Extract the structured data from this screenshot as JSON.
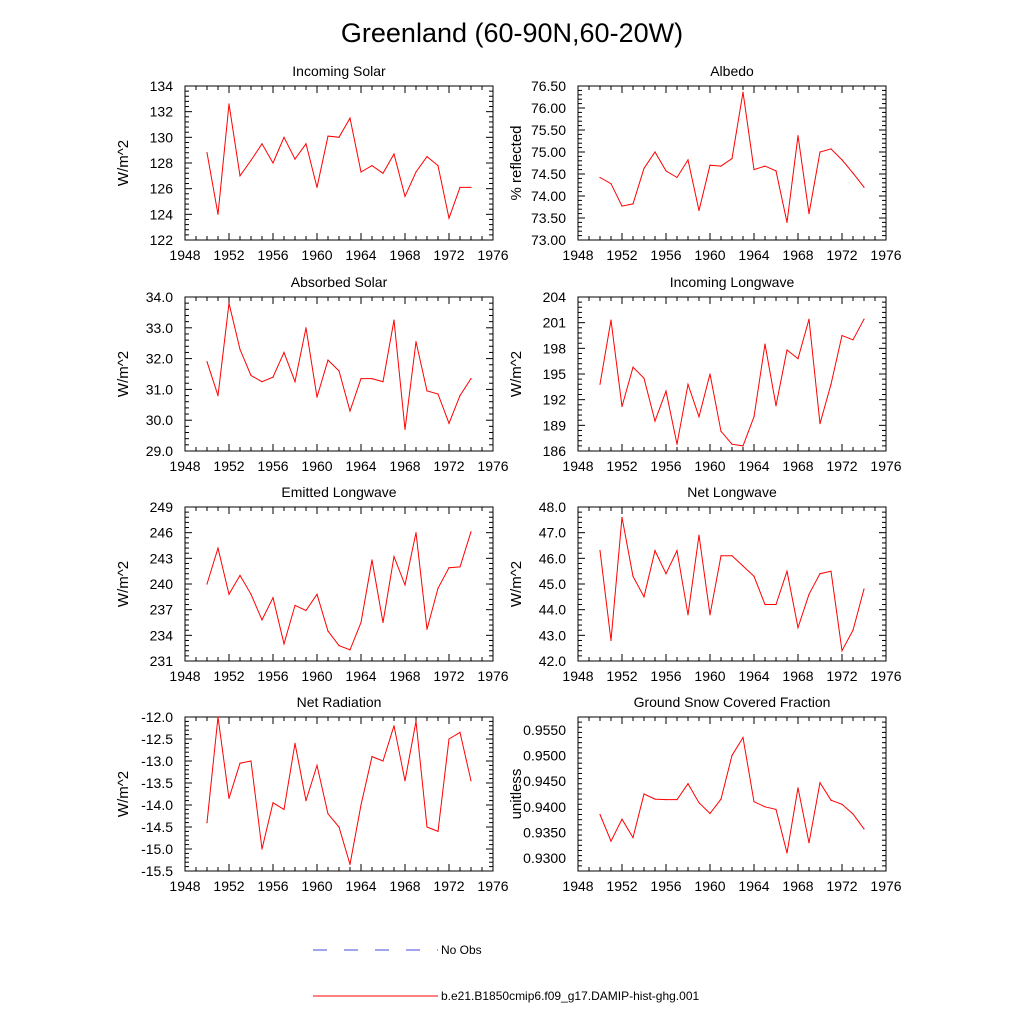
{
  "figure_title": "Greenland (60-90N,60-20W)",
  "colors": {
    "model_line": "#ff0000",
    "obs_line": "#4a4adc",
    "axis": "#000000"
  },
  "legend": {
    "obs_label": "No Obs",
    "model_label": "b.e21.B1850cmip6.f09_g17.DAMIP-hist-ghg.001"
  },
  "chart_data": [
    {
      "type": "line",
      "title": "Incoming Solar",
      "ylabel": "W/m^2",
      "xlim": [
        1948,
        1976
      ],
      "ylim": [
        122,
        134
      ],
      "xticks": [
        "1948",
        "1952",
        "1956",
        "1960",
        "1964",
        "1968",
        "1972",
        "1976"
      ],
      "yticks": [
        "122",
        "124",
        "126",
        "128",
        "130",
        "132",
        "134"
      ],
      "x": [
        1950,
        1951,
        1952,
        1953,
        1954,
        1955,
        1956,
        1957,
        1958,
        1959,
        1960,
        1961,
        1962,
        1963,
        1964,
        1965,
        1966,
        1967,
        1968,
        1969,
        1970,
        1971,
        1972,
        1973,
        1974
      ],
      "series": [
        {
          "values": [
            128.8,
            124.0,
            132.6,
            127.0,
            128.2,
            129.5,
            128.0,
            130.0,
            128.3,
            129.5,
            126.1,
            130.1,
            130.0,
            131.5,
            127.3,
            127.8,
            127.2,
            128.7,
            125.4,
            127.3,
            128.5,
            127.8,
            123.7,
            126.1,
            126.1
          ]
        }
      ]
    },
    {
      "type": "line",
      "title": "Albedo",
      "ylabel": "% reflected",
      "xlim": [
        1948,
        1976
      ],
      "ylim": [
        73.0,
        76.5
      ],
      "xticks": [
        "1948",
        "1952",
        "1956",
        "1960",
        "1964",
        "1968",
        "1972",
        "1976"
      ],
      "yticks": [
        "73.00",
        "73.50",
        "74.00",
        "74.50",
        "75.00",
        "75.50",
        "76.00",
        "76.50"
      ],
      "x": [
        1950,
        1951,
        1952,
        1953,
        1954,
        1955,
        1956,
        1957,
        1958,
        1959,
        1960,
        1961,
        1962,
        1963,
        1964,
        1965,
        1966,
        1967,
        1968,
        1969,
        1970,
        1971,
        1972,
        1973,
        1974
      ],
      "series": [
        {
          "values": [
            74.42,
            74.28,
            73.77,
            73.82,
            74.63,
            75.0,
            74.57,
            74.42,
            74.82,
            73.67,
            74.7,
            74.68,
            74.85,
            76.36,
            74.6,
            74.68,
            74.57,
            73.4,
            75.37,
            73.6,
            75.0,
            75.07,
            74.82,
            74.52,
            74.2
          ]
        }
      ]
    },
    {
      "type": "line",
      "title": "Absorbed Solar",
      "ylabel": "W/m^2",
      "xlim": [
        1948,
        1976
      ],
      "ylim": [
        29.0,
        34.0
      ],
      "xticks": [
        "1948",
        "1952",
        "1956",
        "1960",
        "1964",
        "1968",
        "1972",
        "1976"
      ],
      "yticks": [
        "29.0",
        "30.0",
        "31.0",
        "32.0",
        "33.0",
        "34.0"
      ],
      "x": [
        1950,
        1951,
        1952,
        1953,
        1954,
        1955,
        1956,
        1957,
        1958,
        1959,
        1960,
        1961,
        1962,
        1963,
        1964,
        1965,
        1966,
        1967,
        1968,
        1969,
        1970,
        1971,
        1972,
        1973,
        1974
      ],
      "series": [
        {
          "values": [
            31.9,
            30.8,
            33.8,
            32.3,
            31.45,
            31.25,
            31.4,
            32.2,
            31.25,
            33.0,
            30.75,
            31.95,
            31.6,
            30.3,
            31.35,
            31.35,
            31.25,
            33.25,
            29.7,
            32.55,
            30.95,
            30.85,
            29.9,
            30.8,
            31.35
          ]
        }
      ]
    },
    {
      "type": "line",
      "title": "Incoming Longwave",
      "ylabel": "W/m^2",
      "xlim": [
        1948,
        1976
      ],
      "ylim": [
        186,
        204
      ],
      "xticks": [
        "1948",
        "1952",
        "1956",
        "1960",
        "1964",
        "1968",
        "1972",
        "1976"
      ],
      "yticks": [
        "186",
        "189",
        "192",
        "195",
        "198",
        "201",
        "204"
      ],
      "x": [
        1950,
        1951,
        1952,
        1953,
        1954,
        1955,
        1956,
        1957,
        1958,
        1959,
        1960,
        1961,
        1962,
        1963,
        1964,
        1965,
        1966,
        1967,
        1968,
        1969,
        1970,
        1971,
        1972,
        1973,
        1974
      ],
      "series": [
        {
          "values": [
            193.8,
            201.3,
            191.2,
            195.8,
            194.5,
            189.5,
            193.0,
            186.8,
            193.8,
            190.0,
            195.0,
            188.3,
            186.8,
            186.6,
            190.0,
            198.5,
            191.3,
            197.8,
            196.8,
            201.4,
            189.2,
            193.8,
            199.5,
            199.0,
            201.4
          ]
        }
      ]
    },
    {
      "type": "line",
      "title": "Emitted Longwave",
      "ylabel": "W/m^2",
      "xlim": [
        1948,
        1976
      ],
      "ylim": [
        231,
        249
      ],
      "xticks": [
        "1948",
        "1952",
        "1956",
        "1960",
        "1964",
        "1968",
        "1972",
        "1976"
      ],
      "yticks": [
        "231",
        "234",
        "237",
        "240",
        "243",
        "246",
        "249"
      ],
      "x": [
        1950,
        1951,
        1952,
        1953,
        1954,
        1955,
        1956,
        1957,
        1958,
        1959,
        1960,
        1961,
        1962,
        1963,
        1964,
        1965,
        1966,
        1967,
        1968,
        1969,
        1970,
        1971,
        1972,
        1973,
        1974
      ],
      "series": [
        {
          "values": [
            240.0,
            244.2,
            238.8,
            241.0,
            238.8,
            235.8,
            238.4,
            233.0,
            237.5,
            236.9,
            238.8,
            234.5,
            232.8,
            232.3,
            235.5,
            242.8,
            235.5,
            243.2,
            239.9,
            246.0,
            234.7,
            239.5,
            241.9,
            242.0,
            246.1
          ]
        }
      ]
    },
    {
      "type": "line",
      "title": "Net Longwave",
      "ylabel": "W/m^2",
      "xlim": [
        1948,
        1976
      ],
      "ylim": [
        42.0,
        48.0
      ],
      "xticks": [
        "1948",
        "1952",
        "1956",
        "1960",
        "1964",
        "1968",
        "1972",
        "1976"
      ],
      "yticks": [
        "42.0",
        "43.0",
        "44.0",
        "45.0",
        "46.0",
        "47.0",
        "48.0"
      ],
      "x": [
        1950,
        1951,
        1952,
        1953,
        1954,
        1955,
        1956,
        1957,
        1958,
        1959,
        1960,
        1961,
        1962,
        1963,
        1964,
        1965,
        1966,
        1967,
        1968,
        1969,
        1970,
        1971,
        1972,
        1973,
        1974
      ],
      "series": [
        {
          "values": [
            46.3,
            42.8,
            47.6,
            45.3,
            44.5,
            46.3,
            45.4,
            46.3,
            43.8,
            46.9,
            43.8,
            46.1,
            46.1,
            45.7,
            45.3,
            44.2,
            44.2,
            45.5,
            43.3,
            44.6,
            45.4,
            45.5,
            42.4,
            43.2,
            44.8
          ]
        }
      ]
    },
    {
      "type": "line",
      "title": "Net Radiation",
      "ylabel": "W/m^2",
      "xlim": [
        1948,
        1976
      ],
      "ylim": [
        -15.5,
        -12.0
      ],
      "xticks": [
        "1948",
        "1952",
        "1956",
        "1960",
        "1964",
        "1968",
        "1972",
        "1976"
      ],
      "yticks": [
        "-15.5",
        "-15.0",
        "-14.5",
        "-14.0",
        "-13.5",
        "-13.0",
        "-12.5",
        "-12.0"
      ],
      "x": [
        1950,
        1951,
        1952,
        1953,
        1954,
        1955,
        1956,
        1957,
        1958,
        1959,
        1960,
        1961,
        1962,
        1963,
        1964,
        1965,
        1966,
        1967,
        1968,
        1969,
        1970,
        1971,
        1972,
        1973,
        1974
      ],
      "series": [
        {
          "values": [
            -14.4,
            -12.0,
            -13.85,
            -13.05,
            -13.0,
            -15.0,
            -13.95,
            -14.1,
            -12.6,
            -13.9,
            -13.1,
            -14.2,
            -14.5,
            -15.35,
            -14.0,
            -12.9,
            -13.0,
            -12.2,
            -13.45,
            -12.1,
            -14.5,
            -14.6,
            -12.5,
            -12.35,
            -13.45
          ]
        }
      ]
    },
    {
      "type": "line",
      "title": "Ground Snow Covered Fraction",
      "ylabel": "unitless",
      "xlim": [
        1948,
        1976
      ],
      "ylim": [
        0.9275,
        0.9575
      ],
      "xticks": [
        "1948",
        "1952",
        "1956",
        "1960",
        "1964",
        "1968",
        "1972",
        "1976"
      ],
      "yticks": [
        "0.9300",
        "0.9350",
        "0.9400",
        "0.9450",
        "0.9500",
        "0.9550"
      ],
      "x": [
        1950,
        1951,
        1952,
        1953,
        1954,
        1955,
        1956,
        1957,
        1958,
        1959,
        1960,
        1961,
        1962,
        1963,
        1964,
        1965,
        1966,
        1967,
        1968,
        1969,
        1970,
        1971,
        1972,
        1973,
        1974
      ],
      "series": [
        {
          "values": [
            0.9385,
            0.9333,
            0.9376,
            0.934,
            0.9425,
            0.9415,
            0.9414,
            0.9414,
            0.9445,
            0.9408,
            0.9387,
            0.9415,
            0.95,
            0.9535,
            0.941,
            0.94,
            0.9395,
            0.931,
            0.9437,
            0.933,
            0.9447,
            0.9413,
            0.9405,
            0.9386,
            0.9357
          ]
        }
      ]
    }
  ]
}
